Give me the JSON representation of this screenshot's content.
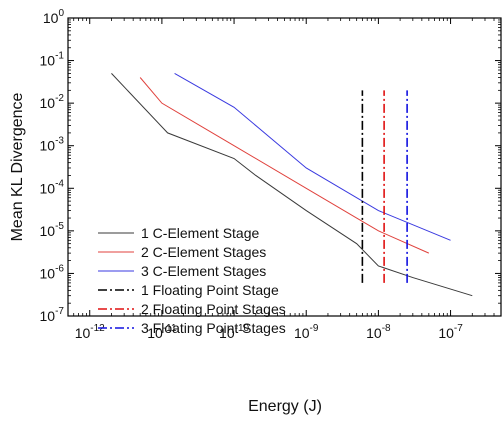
{
  "chart_data": {
    "type": "line",
    "title": "",
    "xlabel": "Energy (J)",
    "ylabel": "Mean KL Divergence",
    "x_scale": "log",
    "y_scale": "log",
    "xlim": [
      5e-13,
      5e-07
    ],
    "ylim": [
      1e-07,
      1
    ],
    "x_ticks": [
      {
        "value": 1e-12,
        "base": "10",
        "exp": "-12"
      },
      {
        "value": 1e-11,
        "base": "10",
        "exp": "-11"
      },
      {
        "value": 1e-10,
        "base": "10",
        "exp": "-10"
      },
      {
        "value": 1e-09,
        "base": "10",
        "exp": "-9"
      },
      {
        "value": 1e-08,
        "base": "10",
        "exp": "-8"
      },
      {
        "value": 1e-07,
        "base": "10",
        "exp": "-7"
      }
    ],
    "y_ticks": [
      {
        "value": 1,
        "base": "10",
        "exp": "0"
      },
      {
        "value": 0.1,
        "base": "10",
        "exp": "-1"
      },
      {
        "value": 0.01,
        "base": "10",
        "exp": "-2"
      },
      {
        "value": 0.001,
        "base": "10",
        "exp": "-3"
      },
      {
        "value": 0.0001,
        "base": "10",
        "exp": "-4"
      },
      {
        "value": 1e-05,
        "base": "10",
        "exp": "-5"
      },
      {
        "value": 1e-06,
        "base": "10",
        "exp": "-6"
      },
      {
        "value": 1e-07,
        "base": "10",
        "exp": "-7"
      }
    ],
    "grid": false,
    "legend_position": "bottom-left",
    "series": [
      {
        "name": "1 C-Element Stage",
        "color": "#3a3a3a",
        "dash": "solid",
        "x": [
          2e-12,
          1.2e-11,
          1e-10,
          2e-10,
          1e-09,
          5e-09,
          1e-08,
          3e-08,
          2e-07
        ],
        "y": [
          0.05,
          0.002,
          0.0005,
          0.0002,
          3e-05,
          5e-06,
          1.5e-06,
          8e-07,
          3e-07
        ]
      },
      {
        "name": "2 C-Element Stages",
        "color": "#e0423d",
        "dash": "solid",
        "x": [
          5e-12,
          1e-11,
          1e-10,
          1e-09,
          5e-09,
          1e-08,
          5e-08
        ],
        "y": [
          0.04,
          0.01,
          0.001,
          0.0001,
          2e-05,
          1e-05,
          3e-06
        ]
      },
      {
        "name": "3 C-Element Stages",
        "color": "#3a3ae0",
        "dash": "solid",
        "x": [
          1.5e-11,
          1e-10,
          1e-09,
          1e-08,
          1e-07
        ],
        "y": [
          0.05,
          0.008,
          0.0003,
          3e-05,
          6e-06
        ]
      },
      {
        "name": "1 Floating Point Stage",
        "color": "#000000",
        "dash": "dashdot",
        "x": [
          6e-09,
          6e-09
        ],
        "y": [
          6e-07,
          0.02
        ]
      },
      {
        "name": "2 Floating Point Stages",
        "color": "#e01010",
        "dash": "dashdot",
        "x": [
          1.2e-08,
          1.2e-08
        ],
        "y": [
          6e-07,
          0.02
        ]
      },
      {
        "name": "3 Floating Point Stages",
        "color": "#1010e0",
        "dash": "dashdot",
        "x": [
          2.5e-08,
          2.5e-08
        ],
        "y": [
          6e-07,
          0.02
        ]
      }
    ]
  }
}
